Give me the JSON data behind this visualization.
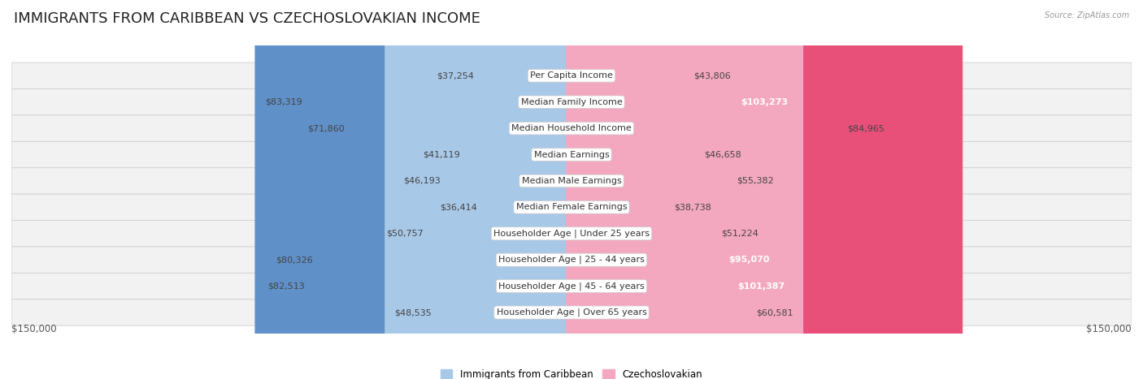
{
  "title": "IMMIGRANTS FROM CARIBBEAN VS CZECHOSLOVAKIAN INCOME",
  "source": "Source: ZipAtlas.com",
  "categories": [
    "Per Capita Income",
    "Median Family Income",
    "Median Household Income",
    "Median Earnings",
    "Median Male Earnings",
    "Median Female Earnings",
    "Householder Age | Under 25 years",
    "Householder Age | 25 - 44 years",
    "Householder Age | 45 - 64 years",
    "Householder Age | Over 65 years"
  ],
  "caribbean_values": [
    37254,
    83319,
    71860,
    41119,
    46193,
    36414,
    50757,
    80326,
    82513,
    48535
  ],
  "czechoslovakian_values": [
    43806,
    103273,
    84965,
    46658,
    55382,
    38738,
    51224,
    95070,
    101387,
    60581
  ],
  "caribbean_color_dark": "#6090c8",
  "caribbean_color_light": "#a8c8e8",
  "czechoslovakian_color_dark": "#e8507a",
  "czechoslovakian_color_light": "#f4a8c0",
  "caribbean_label": "Immigrants from Caribbean",
  "czechoslovakian_label": "Czechoslovakian",
  "max_value": 150000,
  "xlabel_left": "$150,000",
  "xlabel_right": "$150,000",
  "background_color": "#ffffff",
  "row_bg_odd": "#f0f0f0",
  "row_bg_even": "#e8e8e8",
  "title_fontsize": 13,
  "label_fontsize": 8,
  "value_fontsize": 8,
  "axis_fontsize": 8.5,
  "dark_threshold": 75000,
  "white_label_threshold": 85000
}
